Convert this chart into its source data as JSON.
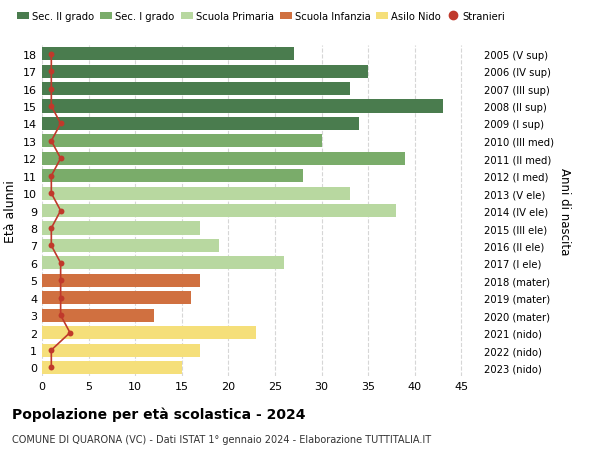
{
  "ages": [
    18,
    17,
    16,
    15,
    14,
    13,
    12,
    11,
    10,
    9,
    8,
    7,
    6,
    5,
    4,
    3,
    2,
    1,
    0
  ],
  "right_labels": [
    "2005 (V sup)",
    "2006 (IV sup)",
    "2007 (III sup)",
    "2008 (II sup)",
    "2009 (I sup)",
    "2010 (III med)",
    "2011 (II med)",
    "2012 (I med)",
    "2013 (V ele)",
    "2014 (IV ele)",
    "2015 (III ele)",
    "2016 (II ele)",
    "2017 (I ele)",
    "2018 (mater)",
    "2019 (mater)",
    "2020 (mater)",
    "2021 (nido)",
    "2022 (nido)",
    "2023 (nido)"
  ],
  "bar_values": [
    27,
    35,
    33,
    43,
    34,
    30,
    39,
    28,
    33,
    38,
    17,
    19,
    26,
    17,
    16,
    12,
    23,
    17,
    15
  ],
  "stranieri_values": [
    1,
    1,
    1,
    1,
    2,
    1,
    2,
    1,
    1,
    2,
    1,
    1,
    2,
    2,
    2,
    2,
    3,
    1,
    1
  ],
  "bar_colors": [
    "#4a7c4e",
    "#4a7c4e",
    "#4a7c4e",
    "#4a7c4e",
    "#4a7c4e",
    "#7aac6a",
    "#7aac6a",
    "#7aac6a",
    "#b8d8a0",
    "#b8d8a0",
    "#b8d8a0",
    "#b8d8a0",
    "#b8d8a0",
    "#d07040",
    "#d07040",
    "#d07040",
    "#f5df7a",
    "#f5df7a",
    "#f5df7a"
  ],
  "legend_labels": [
    "Sec. II grado",
    "Sec. I grado",
    "Scuola Primaria",
    "Scuola Infanzia",
    "Asilo Nido",
    "Stranieri"
  ],
  "legend_colors": [
    "#4a7c4e",
    "#7aac6a",
    "#b8d8a0",
    "#d07040",
    "#f5df7a",
    "#c0392b"
  ],
  "stranieri_color": "#c0392b",
  "title": "Popolazione per età scolastica - 2024",
  "subtitle": "COMUNE DI QUARONA (VC) - Dati ISTAT 1° gennaio 2024 - Elaborazione TUTTITALIA.IT",
  "ylabel": "Età alunni",
  "right_ylabel": "Anni di nascita",
  "xlim": [
    0,
    47
  ],
  "xticks": [
    0,
    5,
    10,
    15,
    20,
    25,
    30,
    35,
    40,
    45
  ],
  "background_color": "#ffffff",
  "bar_height": 0.75
}
